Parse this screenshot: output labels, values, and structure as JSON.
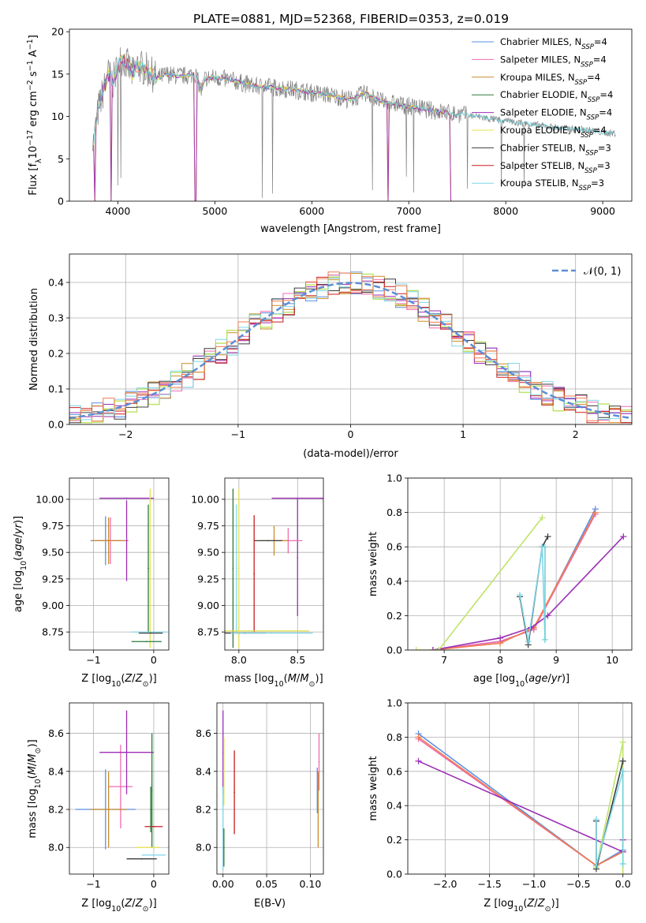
{
  "figure_title": "PLATE=0881, MJD=52368, FIBERID=0353, z=0.019",
  "palette": {
    "chabrier_miles": "#5b8ee6",
    "salpeter_miles": "#f06bb0",
    "kroupa_miles": "#c98c2a",
    "chabrier_elodie": "#2e7a3a",
    "salpeter_elodie": "#9b2fb5",
    "kroupa_elodie": "#e3e34a",
    "chabrier_stelib": "#3c3c3c",
    "salpeter_stelib": "#c81e1e",
    "kroupa_stelib": "#7fd6e8",
    "data_grey": "#808080",
    "model_orange": "#ef7d4e",
    "model_cyan": "#6fd0d8",
    "gauss": "#5b8ed6",
    "lime": "#c0e36a"
  },
  "chart_data": [
    {
      "id": "spectrum",
      "type": "line",
      "xlabel": "wavelength [Angstrom, rest frame]",
      "ylabel_parts": [
        "Flux [f",
        "λ",
        "10",
        "−17",
        " erg cm",
        "−2",
        " s",
        "−1",
        " A",
        "−1",
        "]"
      ],
      "xlim": [
        3500,
        9300
      ],
      "ylim": [
        0,
        20.3
      ],
      "xticks": [
        4000,
        5000,
        6000,
        7000,
        8000,
        9000
      ],
      "yticks": [
        0,
        5,
        10,
        15,
        20
      ],
      "xtick_labels": [
        "4000",
        "5000",
        "6000",
        "7000",
        "8000",
        "9000"
      ],
      "ytick_labels": [
        "0",
        "5",
        "10",
        "15",
        "20"
      ],
      "spectrum_anchors": [
        [
          3750,
          7
        ],
        [
          3800,
          11
        ],
        [
          3850,
          13
        ],
        [
          3900,
          15
        ],
        [
          3950,
          14
        ],
        [
          4000,
          16
        ],
        [
          4050,
          17
        ],
        [
          4100,
          16
        ],
        [
          4150,
          15
        ],
        [
          4200,
          16
        ],
        [
          4300,
          15.5
        ],
        [
          4400,
          14.5
        ],
        [
          4500,
          15
        ],
        [
          4600,
          14.8
        ],
        [
          4700,
          14.8
        ],
        [
          4800,
          15
        ],
        [
          4860,
          13
        ],
        [
          4900,
          14.5
        ],
        [
          5000,
          14.6
        ],
        [
          5200,
          14.2
        ],
        [
          5400,
          13.6
        ],
        [
          5600,
          13.4
        ],
        [
          5800,
          13.2
        ],
        [
          6000,
          12.8
        ],
        [
          6200,
          12.5
        ],
        [
          6400,
          12.0
        ],
        [
          6563,
          12.8
        ],
        [
          6700,
          11.8
        ],
        [
          6900,
          11.4
        ],
        [
          7100,
          11.0
        ],
        [
          7300,
          10.6
        ],
        [
          7500,
          10.3
        ],
        [
          7700,
          10.0
        ],
        [
          7900,
          9.6
        ],
        [
          8100,
          9.3
        ],
        [
          8300,
          9.0
        ],
        [
          8500,
          8.7
        ],
        [
          8700,
          8.5
        ],
        [
          8900,
          8.3
        ],
        [
          9100,
          8.0
        ]
      ],
      "drop_positions": [
        3760,
        3934,
        4800,
        6790,
        7440,
        7620
      ],
      "legend": [
        {
          "label": "Chabrier MILES, N",
          "sub": "SSP",
          "value": "=4",
          "color_key": "chabrier_miles"
        },
        {
          "label": "Salpeter MILES, N",
          "sub": "SSP",
          "value": "=4",
          "color_key": "salpeter_miles"
        },
        {
          "label": "Kroupa MILES, N",
          "sub": "SSP",
          "value": "=4",
          "color_key": "kroupa_miles"
        },
        {
          "label": "Chabrier ELODIE, N",
          "sub": "SSP",
          "value": "=4",
          "color_key": "chabrier_elodie"
        },
        {
          "label": "Salpeter ELODIE, N",
          "sub": "SSP",
          "value": "=4",
          "color_key": "salpeter_elodie"
        },
        {
          "label": "Kroupa ELODIE, N",
          "sub": "SSP",
          "value": "=4",
          "color_key": "kroupa_elodie"
        },
        {
          "label": "Chabrier STELIB, N",
          "sub": "SSP",
          "value": "=3",
          "color_key": "chabrier_stelib"
        },
        {
          "label": "Salpeter STELIB, N",
          "sub": "SSP",
          "value": "=3",
          "color_key": "salpeter_stelib"
        },
        {
          "label": "Kroupa STELIB, N",
          "sub": "SSP",
          "value": "=3",
          "color_key": "kroupa_stelib"
        }
      ]
    },
    {
      "id": "residuals",
      "type": "line",
      "xlabel": "(data-model)/error",
      "ylabel": "Normed distribution",
      "xlim": [
        -2.5,
        2.5
      ],
      "ylim": [
        0,
        0.48
      ],
      "xticks": [
        -2,
        -1,
        0,
        1,
        2
      ],
      "xtick_labels": [
        "−2",
        "−1",
        "0",
        "1",
        "2"
      ],
      "yticks": [
        0,
        0.1,
        0.2,
        0.3,
        0.4
      ],
      "ytick_labels": [
        "0.0",
        "0.1",
        "0.2",
        "0.3",
        "0.4"
      ],
      "legend_label": "𝒩(0, 1)",
      "gaussian": {
        "mean": 0,
        "sigma": 1
      },
      "histogram_bin_width": 0.1
    },
    {
      "id": "age-vs-Z",
      "type": "scatter",
      "xlabel": "Z [log10(Z/Z⊙)]",
      "ylabel": "age  [log10(age/yr)]",
      "xlim": [
        -1.4,
        0.25
      ],
      "ylim": [
        8.58,
        10.2
      ],
      "xticks": [
        -1,
        0
      ],
      "xtick_labels": [
        "−1",
        "0"
      ],
      "yticks": [
        8.75,
        9.0,
        9.25,
        9.5,
        9.75,
        10.0
      ],
      "ytick_labels": [
        "8.75",
        "9.00",
        "9.25",
        "9.50",
        "9.75",
        "10.00"
      ],
      "points": [
        {
          "color_key": "chabrier_miles",
          "x": -0.8,
          "y": 9.61,
          "xerr": 0.25,
          "yerr": 0.23
        },
        {
          "color_key": "salpeter_miles",
          "x": -0.72,
          "y": 9.61,
          "xerr": 0.3,
          "yerr": 0.22
        },
        {
          "color_key": "kroupa_miles",
          "x": -0.75,
          "y": 9.61,
          "xerr": 0.27,
          "yerr": 0.22
        },
        {
          "color_key": "salpeter_elodie",
          "x": -0.45,
          "y": 10.01,
          "xerr": 0.45,
          "yerr": 0.0
        },
        {
          "color_key": "salpeter_elodie",
          "x": -0.45,
          "y": 9.61,
          "xerr": 0.0,
          "yerr": 0.38
        },
        {
          "color_key": "chabrier_elodie",
          "x": -0.09,
          "y": 9.35,
          "xerr": 0.0,
          "yerr": 0.6
        },
        {
          "color_key": "kroupa_elodie",
          "x": -0.06,
          "y": 9.35,
          "xerr": 0.0,
          "yerr": 0.75
        },
        {
          "color_key": "kroupa_stelib",
          "x": -0.08,
          "y": 8.75,
          "xerr": 0.3,
          "yerr": 0.0
        },
        {
          "color_key": "chabrier_stelib",
          "x": -0.05,
          "y": 8.74,
          "xerr": 0.2,
          "yerr": 0.0
        },
        {
          "color_key": "chabrier_elodie",
          "x": -0.12,
          "y": 8.66,
          "xerr": 0.25,
          "yerr": 0.0
        }
      ]
    },
    {
      "id": "age-vs-mass",
      "type": "scatter",
      "xlabel": "mass [log10(M/M⊙)]",
      "xlim": [
        7.88,
        8.72
      ],
      "ylim": [
        8.58,
        10.2
      ],
      "xticks": [
        8.0,
        8.5
      ],
      "xtick_labels": [
        "8.0",
        "8.5"
      ],
      "yticks": [
        8.75,
        9.0,
        9.25,
        9.5,
        9.75,
        10.0
      ],
      "ytick_labels": [
        "8.75",
        "9.00",
        "9.25",
        "9.50",
        "9.75",
        "10.00"
      ],
      "points": [
        {
          "color_key": "salpeter_elodie",
          "x": 8.5,
          "y": 10.01,
          "xerr": 0.22,
          "yerr": 0.0
        },
        {
          "color_key": "salpeter_elodie",
          "x": 8.5,
          "y": 9.45,
          "xerr": 0.0,
          "yerr": 0.55
        },
        {
          "color_key": "salpeter_miles",
          "x": 8.42,
          "y": 9.61,
          "xerr": 0.12,
          "yerr": 0.12
        },
        {
          "color_key": "kroupa_miles",
          "x": 8.3,
          "y": 9.61,
          "xerr": 0.12,
          "yerr": 0.14
        },
        {
          "color_key": "chabrier_stelib",
          "x": 8.25,
          "y": 9.61,
          "xerr": 0.12,
          "yerr": 0.0
        },
        {
          "color_key": "salpeter_stelib",
          "x": 8.13,
          "y": 9.3,
          "xerr": 0.0,
          "yerr": 0.55
        },
        {
          "color_key": "kroupa_elodie",
          "x": 8.0,
          "y": 9.35,
          "xerr": 0.0,
          "yerr": 0.75
        },
        {
          "color_key": "chabrier_elodie",
          "x": 7.95,
          "y": 9.35,
          "xerr": 0.0,
          "yerr": 0.75
        },
        {
          "color_key": "kroupa_stelib",
          "x": 7.98,
          "y": 9.35,
          "xerr": 0.0,
          "yerr": 0.6
        },
        {
          "color_key": "kroupa_elodie",
          "x": 8.2,
          "y": 8.76,
          "xerr": 0.4,
          "yerr": 0.0
        },
        {
          "color_key": "chabrier_stelib",
          "x": 8.05,
          "y": 8.74,
          "xerr": 0.18,
          "yerr": 0.0
        },
        {
          "color_key": "kroupa_stelib",
          "x": 8.28,
          "y": 8.74,
          "xerr": 0.35,
          "yerr": 0.0
        }
      ]
    },
    {
      "id": "weight-vs-age",
      "type": "line",
      "xlabel": "age  [log10(age/yr)]",
      "ylabel": "mass weight",
      "xlim": [
        6.35,
        10.35
      ],
      "ylim": [
        0,
        1.0
      ],
      "xticks": [
        7,
        8,
        9,
        10
      ],
      "xtick_labels": [
        "7",
        "8",
        "9",
        "10"
      ],
      "yticks": [
        0,
        0.2,
        0.4,
        0.6,
        0.8,
        1.0
      ],
      "ytick_labels": [
        "0.0",
        "0.2",
        "0.4",
        "0.6",
        "0.8",
        "1.0"
      ],
      "series": [
        {
          "color_key": "chabrier_miles",
          "x": [
            6.8,
            8.0,
            8.6,
            9.7
          ],
          "y": [
            0.0,
            0.05,
            0.12,
            0.82
          ]
        },
        {
          "color_key": "salpeter_miles",
          "x": [
            6.8,
            8.0,
            8.6,
            9.7
          ],
          "y": [
            0.0,
            0.05,
            0.12,
            0.79
          ]
        },
        {
          "color_key": "model_orange",
          "x": [
            6.8,
            8.0,
            8.6,
            9.7
          ],
          "y": [
            0.0,
            0.04,
            0.13,
            0.8
          ]
        },
        {
          "color_key": "salpeter_elodie",
          "x": [
            6.8,
            8.0,
            8.55,
            8.85,
            10.2
          ],
          "y": [
            0.0,
            0.07,
            0.13,
            0.2,
            0.66
          ]
        },
        {
          "color_key": "lime",
          "x": [
            6.5,
            6.9,
            8.75
          ],
          "y": [
            0.0,
            0.0,
            0.77
          ]
        },
        {
          "color_key": "chabrier_stelib",
          "x": [
            8.35,
            8.5,
            8.75,
            8.85
          ],
          "y": [
            0.31,
            0.03,
            0.6,
            0.66
          ]
        },
        {
          "color_key": "kroupa_stelib",
          "x": [
            8.35,
            8.5,
            8.75,
            8.8
          ],
          "y": [
            0.32,
            0.05,
            0.6,
            0.06
          ]
        },
        {
          "color_key": "model_cyan",
          "x": [
            8.8,
            8.8
          ],
          "y": [
            0.6,
            0.06
          ]
        }
      ]
    },
    {
      "id": "mass-vs-Z",
      "type": "scatter",
      "xlabel": "Z [log10(Z/Z⊙)]",
      "ylabel": "mass [log10(M/M⊙)]",
      "xlim": [
        -1.4,
        0.25
      ],
      "ylim": [
        7.86,
        8.76
      ],
      "xticks": [
        -1,
        0
      ],
      "xtick_labels": [
        "−1",
        "0"
      ],
      "yticks": [
        8.0,
        8.2,
        8.4,
        8.6
      ],
      "ytick_labels": [
        "8.0",
        "8.2",
        "8.4",
        "8.6"
      ],
      "points": [
        {
          "color_key": "chabrier_miles",
          "x": -0.8,
          "y": 8.2,
          "xerr": 0.5,
          "yerr": 0.21
        },
        {
          "color_key": "salpeter_miles",
          "x": -0.55,
          "y": 8.32,
          "xerr": 0.2,
          "yerr": 0.22
        },
        {
          "color_key": "kroupa_miles",
          "x": -0.75,
          "y": 8.2,
          "xerr": 0.3,
          "yerr": 0.2
        },
        {
          "color_key": "salpeter_elodie",
          "x": -0.45,
          "y": 8.5,
          "xerr": 0.45,
          "yerr": 0.22
        },
        {
          "color_key": "chabrier_elodie",
          "x": -0.03,
          "y": 8.3,
          "xerr": 0.0,
          "yerr": 0.3
        },
        {
          "color_key": "salpeter_stelib",
          "x": 0.0,
          "y": 8.11,
          "xerr": 0.15,
          "yerr": 0.0
        },
        {
          "color_key": "kroupa_elodie",
          "x": -0.1,
          "y": 8.0,
          "xerr": 0.2,
          "yerr": 0.0
        },
        {
          "color_key": "kroupa_stelib",
          "x": 0.0,
          "y": 7.96,
          "xerr": 0.2,
          "yerr": 0.0
        },
        {
          "color_key": "chabrier_stelib",
          "x": -0.2,
          "y": 7.94,
          "xerr": 0.25,
          "yerr": 0.0
        },
        {
          "color_key": "chabrier_elodie",
          "x": -0.05,
          "y": 8.2,
          "xerr": 0.0,
          "yerr": 0.12
        }
      ]
    },
    {
      "id": "mass-vs-EBV",
      "type": "scatter",
      "xlabel": "E(B-V)",
      "xlim": [
        -0.007,
        0.115
      ],
      "ylim": [
        7.86,
        8.76
      ],
      "xticks": [
        0.0,
        0.05,
        0.1
      ],
      "xtick_labels": [
        "0.00",
        "0.05",
        "0.10"
      ],
      "yticks": [
        8.0,
        8.2,
        8.4,
        8.6
      ],
      "ytick_labels": [
        "8.0",
        "8.2",
        "8.4",
        "8.6"
      ],
      "points": [
        {
          "color_key": "salpeter_elodie",
          "x": 0.0,
          "y": 8.5,
          "xerr": 0.0,
          "yerr": 0.22
        },
        {
          "color_key": "kroupa_elodie",
          "x": 0.001,
          "y": 8.4,
          "xerr": 0.0,
          "yerr": 0.18
        },
        {
          "color_key": "kroupa_stelib",
          "x": 0.0,
          "y": 8.1,
          "xerr": 0.0,
          "yerr": 0.22
        },
        {
          "color_key": "chabrier_elodie",
          "x": 0.001,
          "y": 8.0,
          "xerr": 0.0,
          "yerr": 0.1
        },
        {
          "color_key": "salpeter_stelib",
          "x": 0.013,
          "y": 8.29,
          "xerr": 0.0,
          "yerr": 0.22
        },
        {
          "color_key": "salpeter_miles",
          "x": 0.11,
          "y": 8.45,
          "xerr": 0.0,
          "yerr": 0.15
        },
        {
          "color_key": "kroupa_miles",
          "x": 0.109,
          "y": 8.2,
          "xerr": 0.0,
          "yerr": 0.2
        },
        {
          "color_key": "chabrier_miles",
          "x": 0.108,
          "y": 8.3,
          "xerr": 0.0,
          "yerr": 0.12
        }
      ]
    },
    {
      "id": "weight-vs-Z",
      "type": "line",
      "xlabel": "Z [log10(Z/Z⊙)]",
      "ylabel": "mass weight",
      "xlim": [
        -2.42,
        0.1
      ],
      "ylim": [
        0,
        1.0
      ],
      "xticks": [
        -2.0,
        -1.5,
        -1.0,
        -0.5,
        0.0
      ],
      "xtick_labels": [
        "−2.0",
        "−1.5",
        "−1.0",
        "−0.5",
        "0.0"
      ],
      "yticks": [
        0,
        0.2,
        0.4,
        0.6,
        0.8,
        1.0
      ],
      "ytick_labels": [
        "0.0",
        "0.2",
        "0.4",
        "0.6",
        "0.8",
        "1.0"
      ],
      "series": [
        {
          "color_key": "chabrier_miles",
          "x": [
            -2.3,
            -0.3,
            0.0
          ],
          "y": [
            0.82,
            0.05,
            0.14
          ]
        },
        {
          "color_key": "salpeter_miles",
          "x": [
            -2.3,
            -0.3,
            0.0
          ],
          "y": [
            0.79,
            0.05,
            0.13
          ]
        },
        {
          "color_key": "model_orange",
          "x": [
            -2.3,
            -0.3,
            0.0
          ],
          "y": [
            0.8,
            0.05,
            0.13
          ]
        },
        {
          "color_key": "salpeter_elodie",
          "x": [
            -2.3,
            0.0,
            0.0
          ],
          "y": [
            0.66,
            0.13,
            0.2
          ]
        },
        {
          "color_key": "lime",
          "x": [
            -0.3,
            0.0,
            0.0
          ],
          "y": [
            0.04,
            0.77,
            0.0
          ]
        },
        {
          "color_key": "chabrier_stelib",
          "x": [
            -0.3,
            -0.3,
            0.0
          ],
          "y": [
            0.31,
            0.03,
            0.66
          ]
        },
        {
          "color_key": "kroupa_stelib",
          "x": [
            -0.3,
            -0.3,
            0.0
          ],
          "y": [
            0.32,
            0.05,
            0.6
          ]
        },
        {
          "color_key": "model_cyan",
          "x": [
            0.0,
            0.0
          ],
          "y": [
            0.6,
            0.06
          ]
        }
      ]
    }
  ]
}
